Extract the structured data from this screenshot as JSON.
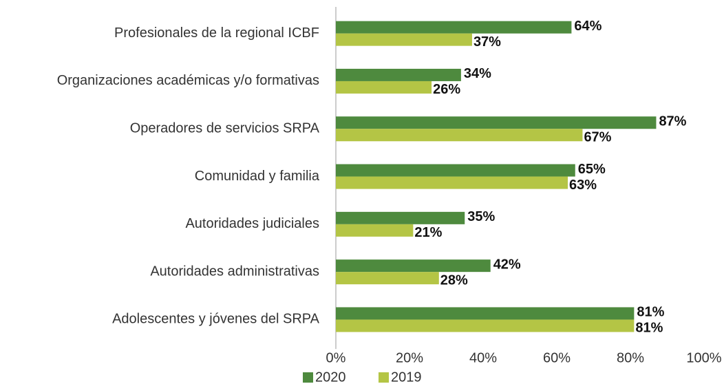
{
  "chart_data": {
    "type": "barh",
    "categories": [
      "Profesionales de la regional ICBF",
      "Organizaciones académicas y/o formativas",
      "Operadores de servicios SRPA",
      "Comunidad y familia",
      "Autoridades judiciales",
      "Autoridades administrativas",
      "Adolescentes y jóvenes del SRPA"
    ],
    "series": [
      {
        "name": "2020",
        "color": "#4e8a3e",
        "values": [
          64,
          34,
          87,
          65,
          35,
          42,
          81
        ],
        "value_labels": [
          "64%",
          "34%",
          "87%",
          "65%",
          "35%",
          "42%",
          "81%"
        ]
      },
      {
        "name": "2019",
        "color": "#b4c545",
        "values": [
          37,
          26,
          67,
          63,
          21,
          28,
          81
        ],
        "value_labels": [
          "37%",
          "26%",
          "67%",
          "63%",
          "21%",
          "28%",
          "81%"
        ]
      }
    ],
    "xlim": [
      0,
      100
    ],
    "xticks": [
      {
        "value": 0,
        "label": "0%"
      },
      {
        "value": 20,
        "label": "20%"
      },
      {
        "value": 40,
        "label": "40%"
      },
      {
        "value": 60,
        "label": "60%"
      },
      {
        "value": 80,
        "label": "80%"
      },
      {
        "value": 100,
        "label": "100%"
      }
    ],
    "legend": "bottom"
  }
}
